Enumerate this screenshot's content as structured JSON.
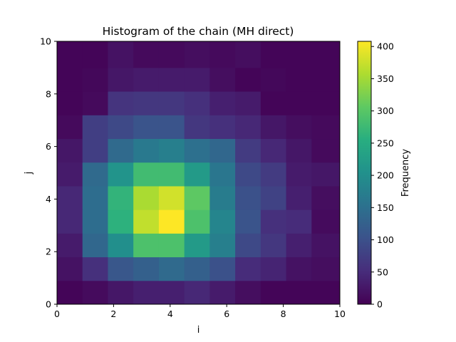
{
  "chart_data": {
    "type": "heatmap",
    "title": "Histogram of the chain (MH direct)",
    "xlabel": "i",
    "ylabel": "j",
    "xlim": [
      0,
      10
    ],
    "ylim": [
      0,
      10
    ],
    "x_ticks": [
      "0",
      "2",
      "4",
      "6",
      "8",
      "10"
    ],
    "y_ticks": [
      "0",
      "2",
      "4",
      "6",
      "8",
      "10"
    ],
    "x_bin_edges": [
      0,
      0.9,
      1.8,
      2.7,
      3.6,
      4.5,
      5.4,
      6.3,
      7.2,
      8.1,
      9.0,
      10.0
    ],
    "y_bin_edges": [
      0,
      0.9,
      1.8,
      2.7,
      3.6,
      4.5,
      5.4,
      6.3,
      7.2,
      8.1,
      9.0,
      10.0
    ],
    "colormap": "viridis",
    "vmin": 0,
    "vmax": 408,
    "colorbar": {
      "label": "Frequency",
      "ticks": [
        "0",
        "50",
        "100",
        "150",
        "200",
        "250",
        "300",
        "350",
        "400"
      ]
    },
    "z_rows_bottom_to_top": [
      [
        5,
        12,
        25,
        35,
        35,
        45,
        30,
        15,
        5,
        5,
        5
      ],
      [
        20,
        55,
        110,
        125,
        140,
        125,
        100,
        50,
        40,
        20,
        15
      ],
      [
        30,
        135,
        200,
        290,
        290,
        220,
        175,
        90,
        65,
        35,
        20
      ],
      [
        45,
        145,
        260,
        370,
        408,
        290,
        185,
        105,
        55,
        50,
        12
      ],
      [
        45,
        145,
        265,
        355,
        380,
        305,
        170,
        100,
        80,
        35,
        15
      ],
      [
        30,
        140,
        210,
        280,
        280,
        220,
        160,
        90,
        70,
        30,
        25
      ],
      [
        25,
        75,
        140,
        165,
        175,
        150,
        135,
        70,
        45,
        25,
        10
      ],
      [
        10,
        75,
        90,
        105,
        105,
        65,
        55,
        45,
        25,
        15,
        10
      ],
      [
        5,
        10,
        60,
        65,
        65,
        55,
        35,
        30,
        5,
        5,
        5
      ],
      [
        5,
        8,
        25,
        30,
        30,
        30,
        15,
        5,
        8,
        5,
        5
      ],
      [
        5,
        5,
        20,
        10,
        10,
        15,
        10,
        15,
        5,
        5,
        5
      ]
    ]
  }
}
